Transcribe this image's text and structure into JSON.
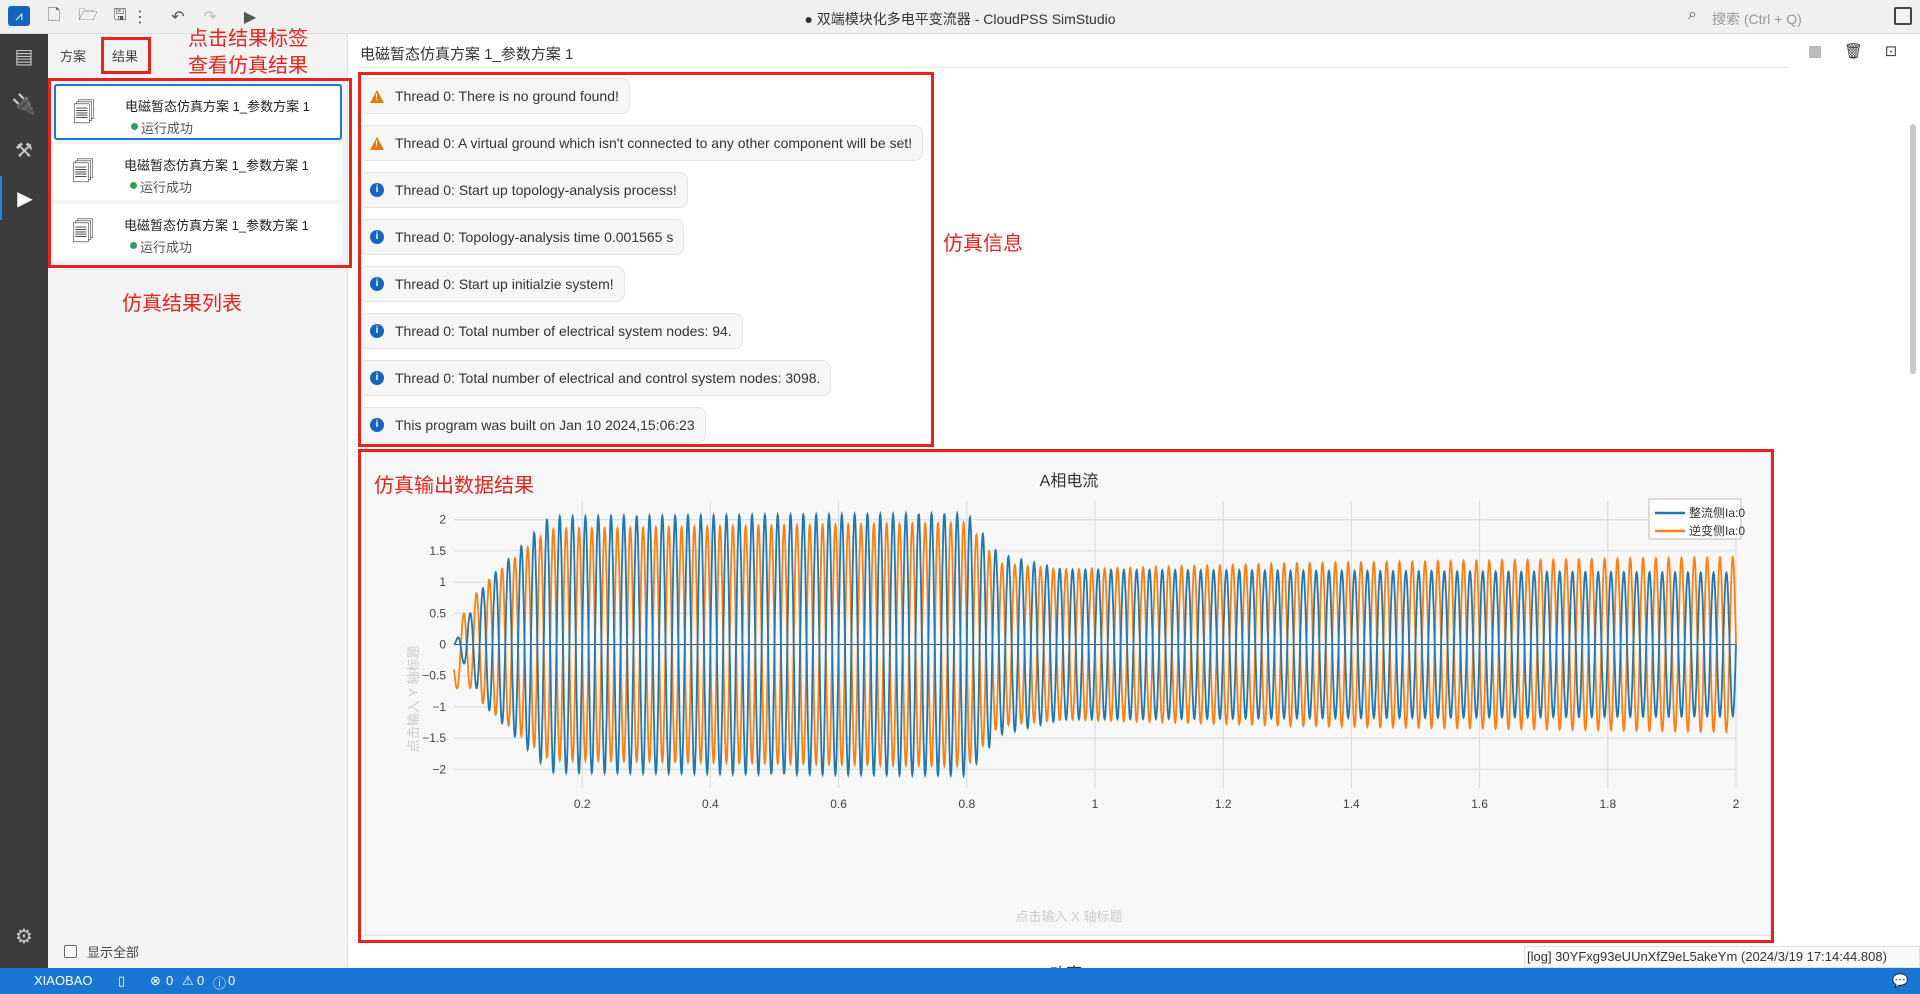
{
  "window": {
    "title": "● 双端模块化多电平变流器 - CloudPSS SimStudio",
    "search_placeholder": "搜索 (Ctrl + Q)"
  },
  "sidebar": {
    "tabs": [
      "方案",
      "结果"
    ],
    "results": [
      {
        "title": "电磁暂态仿真方案 1_参数方案 1",
        "status": "运行成功"
      },
      {
        "title": "电磁暂态仿真方案 1_参数方案 1",
        "status": "运行成功"
      },
      {
        "title": "电磁暂态仿真方案 1_参数方案 1",
        "status": "运行成功"
      }
    ],
    "show_all_label": "显示全部"
  },
  "main": {
    "title": "电磁暂态仿真方案 1_参数方案 1",
    "messages": [
      {
        "level": "warning",
        "text": "Thread 0: There is no ground found!"
      },
      {
        "level": "warning",
        "text": "Thread 0: A virtual ground which isn't connected to any other component will be set!"
      },
      {
        "level": "info",
        "text": "Thread 0: Start up topology-analysis process!"
      },
      {
        "level": "info",
        "text": "Thread 0: Topology-analysis time 0.001565 s"
      },
      {
        "level": "info",
        "text": "Thread 0: Start up initialzie system!"
      },
      {
        "level": "info",
        "text": "Thread 0: Total number of electrical system nodes: 94."
      },
      {
        "level": "info",
        "text": "Thread 0: Total number of electrical and control system nodes: 3098."
      },
      {
        "level": "info",
        "text": "This program was built on Jan 10 2024,15:06:23"
      }
    ],
    "next_chart_title": "功率"
  },
  "annotations": {
    "tab_hint_line1": "点击结果标签",
    "tab_hint_line2": "查看仿真结果",
    "list_label": "仿真结果列表",
    "info_label": "仿真信息",
    "output_label": "仿真输出数据结果"
  },
  "log": "[log] 30YFxg93eUUnXfZ9eL5akeYm (2024/3/19 17:14:44.808)",
  "statusbar": {
    "user": "XIAOBAO",
    "errors": "0",
    "warnings": "0",
    "infos": "0"
  },
  "colors": {
    "accent": "#1976d2",
    "annotation": "#e8231c",
    "series_rectifier": "#1f77b4",
    "series_inverter": "#ff7f0e"
  },
  "chart_data": {
    "type": "line",
    "title": "A相电流",
    "xlabel": "点击输入 X 轴标题",
    "ylabel": "点击输入 Y 轴标题",
    "xlim": [
      0,
      2
    ],
    "ylim": [
      -2.3,
      2.3
    ],
    "xticks": [
      "0.2",
      "0.4",
      "0.6",
      "0.8",
      "1",
      "1.2",
      "1.4",
      "1.6",
      "1.8",
      "2"
    ],
    "yticks": [
      "2",
      "1.5",
      "1",
      "0.5",
      "0",
      "−0.5",
      "−1",
      "−1.5",
      "−2"
    ],
    "frequency_hz": 50,
    "grid": true,
    "legend_position": "top-right",
    "series": [
      {
        "name": "整流侧Ia:0",
        "color": "#1f77b4",
        "amplitude_envelope": [
          [
            0,
            0.0
          ],
          [
            0.05,
            1.0
          ],
          [
            0.15,
            2.05
          ],
          [
            0.8,
            2.1
          ],
          [
            0.85,
            1.45
          ],
          [
            0.95,
            1.2
          ],
          [
            2,
            1.15
          ]
        ]
      },
      {
        "name": "逆变侧Ia:0",
        "color": "#ff7f0e",
        "amplitude_envelope": [
          [
            0,
            0.4
          ],
          [
            0.05,
            1.0
          ],
          [
            0.15,
            1.85
          ],
          [
            0.8,
            1.95
          ],
          [
            0.85,
            1.3
          ],
          [
            0.95,
            1.2
          ],
          [
            1.3,
            1.3
          ],
          [
            2,
            1.4
          ]
        ]
      }
    ]
  }
}
